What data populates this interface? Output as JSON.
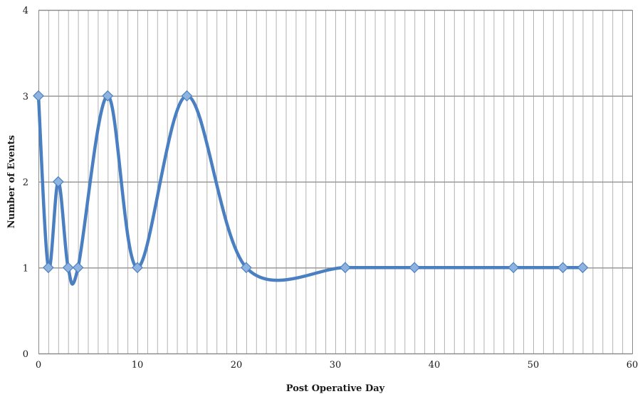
{
  "chart_data": {
    "type": "line",
    "title": "",
    "xlabel": "Post Operative Day",
    "ylabel": "Number of Events",
    "xlim": [
      0,
      60
    ],
    "ylim": [
      0,
      4
    ],
    "x_ticks": [
      0,
      10,
      20,
      30,
      40,
      50,
      60
    ],
    "y_ticks": [
      0,
      1,
      2,
      3,
      4
    ],
    "grid": true,
    "smooth": true,
    "legend": "none",
    "line_color": "#4a7fc1",
    "marker_color": "#8fb3e0",
    "series": [
      {
        "x": [
          0,
          1,
          2,
          3,
          4,
          7,
          10,
          15,
          21,
          31,
          38,
          48,
          53,
          55
        ],
        "values": [
          3,
          1,
          2,
          1,
          1,
          3,
          1,
          3,
          1,
          1,
          1,
          1,
          1,
          1
        ]
      }
    ]
  }
}
